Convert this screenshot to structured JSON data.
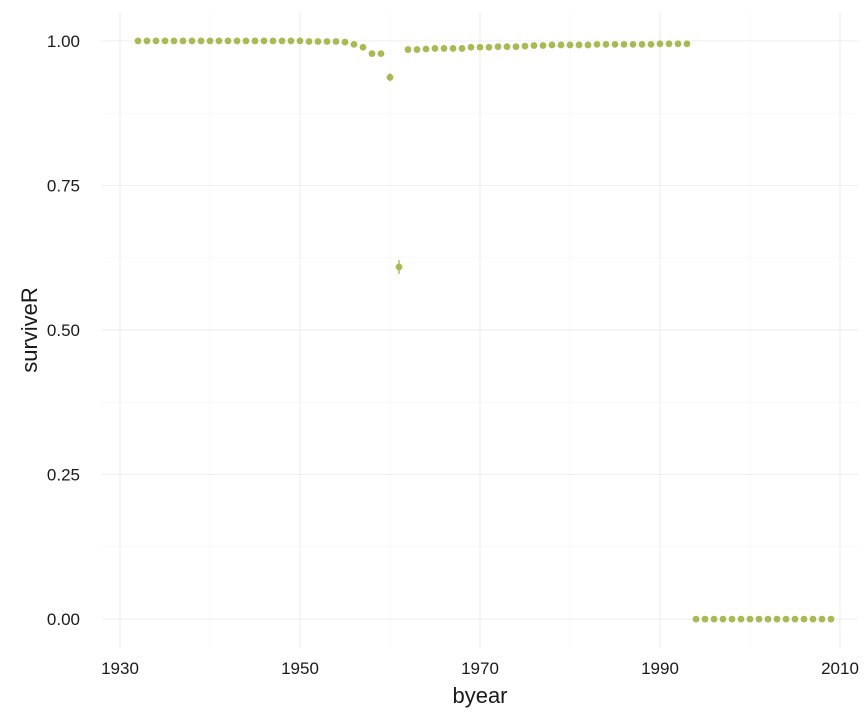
{
  "chart_data": {
    "type": "scatter",
    "title": "",
    "xlabel": "byear",
    "ylabel": "surviveR",
    "xlim": [
      1928,
      2012
    ],
    "ylim": [
      -0.05,
      1.05
    ],
    "x_ticks": [
      1930,
      1950,
      1970,
      1990,
      2010
    ],
    "x_tick_labels": [
      "1930",
      "1950",
      "1970",
      "1990",
      "2010"
    ],
    "y_ticks": [
      0,
      0.25,
      0.5,
      0.75,
      1.0
    ],
    "y_tick_labels": [
      "0.00",
      "0.25",
      "0.50",
      "0.75",
      "1.00"
    ],
    "grid": true,
    "point_color": "#a9ba55",
    "series": [
      {
        "points": [
          {
            "x": 1932,
            "y": 1.0
          },
          {
            "x": 1933,
            "y": 1.0
          },
          {
            "x": 1934,
            "y": 1.0
          },
          {
            "x": 1935,
            "y": 1.0
          },
          {
            "x": 1936,
            "y": 1.0
          },
          {
            "x": 1937,
            "y": 1.0
          },
          {
            "x": 1938,
            "y": 1.0
          },
          {
            "x": 1939,
            "y": 1.0
          },
          {
            "x": 1940,
            "y": 1.0
          },
          {
            "x": 1941,
            "y": 1.0
          },
          {
            "x": 1942,
            "y": 1.0
          },
          {
            "x": 1943,
            "y": 1.0
          },
          {
            "x": 1944,
            "y": 1.0
          },
          {
            "x": 1945,
            "y": 1.0
          },
          {
            "x": 1946,
            "y": 1.0
          },
          {
            "x": 1947,
            "y": 1.0
          },
          {
            "x": 1948,
            "y": 1.0
          },
          {
            "x": 1949,
            "y": 1.0
          },
          {
            "x": 1950,
            "y": 1.0
          },
          {
            "x": 1951,
            "y": 0.999
          },
          {
            "x": 1952,
            "y": 0.999
          },
          {
            "x": 1953,
            "y": 0.999
          },
          {
            "x": 1954,
            "y": 0.999
          },
          {
            "x": 1955,
            "y": 0.998
          },
          {
            "x": 1956,
            "y": 0.994
          },
          {
            "x": 1957,
            "y": 0.989
          },
          {
            "x": 1958,
            "y": 0.978
          },
          {
            "x": 1959,
            "y": 0.978
          },
          {
            "x": 1960,
            "y": 0.937,
            "err": 0.007
          },
          {
            "x": 1961,
            "y": 0.609,
            "err": 0.012
          },
          {
            "x": 1962,
            "y": 0.985
          },
          {
            "x": 1963,
            "y": 0.985
          },
          {
            "x": 1964,
            "y": 0.986
          },
          {
            "x": 1965,
            "y": 0.987
          },
          {
            "x": 1966,
            "y": 0.987
          },
          {
            "x": 1967,
            "y": 0.987
          },
          {
            "x": 1968,
            "y": 0.987
          },
          {
            "x": 1969,
            "y": 0.989
          },
          {
            "x": 1970,
            "y": 0.989
          },
          {
            "x": 1971,
            "y": 0.989
          },
          {
            "x": 1972,
            "y": 0.99
          },
          {
            "x": 1973,
            "y": 0.99
          },
          {
            "x": 1974,
            "y": 0.99
          },
          {
            "x": 1975,
            "y": 0.991
          },
          {
            "x": 1976,
            "y": 0.992
          },
          {
            "x": 1977,
            "y": 0.992
          },
          {
            "x": 1978,
            "y": 0.993
          },
          {
            "x": 1979,
            "y": 0.993
          },
          {
            "x": 1980,
            "y": 0.993
          },
          {
            "x": 1981,
            "y": 0.993
          },
          {
            "x": 1982,
            "y": 0.993
          },
          {
            "x": 1983,
            "y": 0.994
          },
          {
            "x": 1984,
            "y": 0.994
          },
          {
            "x": 1985,
            "y": 0.994
          },
          {
            "x": 1986,
            "y": 0.994
          },
          {
            "x": 1987,
            "y": 0.994
          },
          {
            "x": 1988,
            "y": 0.994
          },
          {
            "x": 1989,
            "y": 0.994
          },
          {
            "x": 1990,
            "y": 0.995
          },
          {
            "x": 1991,
            "y": 0.995
          },
          {
            "x": 1992,
            "y": 0.995
          },
          {
            "x": 1993,
            "y": 0.995
          },
          {
            "x": 1994,
            "y": 0.0
          },
          {
            "x": 1995,
            "y": 0.0
          },
          {
            "x": 1996,
            "y": 0.0
          },
          {
            "x": 1997,
            "y": 0.0
          },
          {
            "x": 1998,
            "y": 0.0
          },
          {
            "x": 1999,
            "y": 0.0
          },
          {
            "x": 2000,
            "y": 0.0
          },
          {
            "x": 2001,
            "y": 0.0
          },
          {
            "x": 2002,
            "y": 0.0
          },
          {
            "x": 2003,
            "y": 0.0
          },
          {
            "x": 2004,
            "y": 0.0
          },
          {
            "x": 2005,
            "y": 0.0
          },
          {
            "x": 2006,
            "y": 0.0
          },
          {
            "x": 2007,
            "y": 0.0
          },
          {
            "x": 2008,
            "y": 0.0
          },
          {
            "x": 2009,
            "y": 0.0
          }
        ]
      }
    ]
  }
}
